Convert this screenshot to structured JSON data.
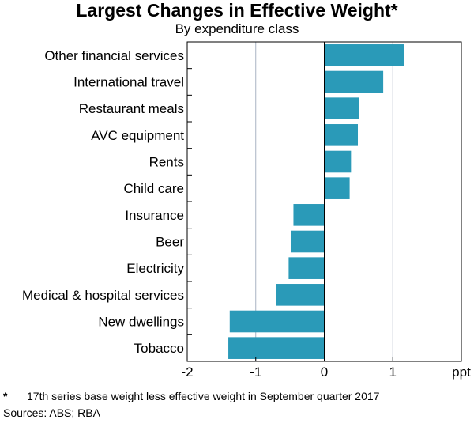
{
  "chart_data": {
    "type": "bar",
    "orientation": "horizontal",
    "title": "Largest Changes in Effective Weight*",
    "subtitle": "By expenditure class",
    "categories": [
      "Other financial services",
      "International travel",
      "Restaurant meals",
      "AVC equipment",
      "Rents",
      "Child care",
      "Insurance",
      "Beer",
      "Electricity",
      "Medical & hospital services",
      "New dwellings",
      "Tobacco"
    ],
    "values": [
      1.17,
      0.86,
      0.51,
      0.49,
      0.39,
      0.37,
      -0.45,
      -0.49,
      -0.52,
      -0.7,
      -1.38,
      -1.4
    ],
    "xlim": [
      -2,
      2
    ],
    "xticks": [
      -2,
      -1,
      0,
      1
    ],
    "xtick_labels": [
      "-2",
      "-1",
      "0",
      "1"
    ],
    "xlabel": "ppt",
    "gridlines": [
      -1,
      1
    ],
    "bar_color": "#2a9ab8"
  },
  "footnote": {
    "marker": "*",
    "text": "17th series base weight less effective weight in September quarter 2017"
  },
  "sources": "Sources: ABS; RBA"
}
